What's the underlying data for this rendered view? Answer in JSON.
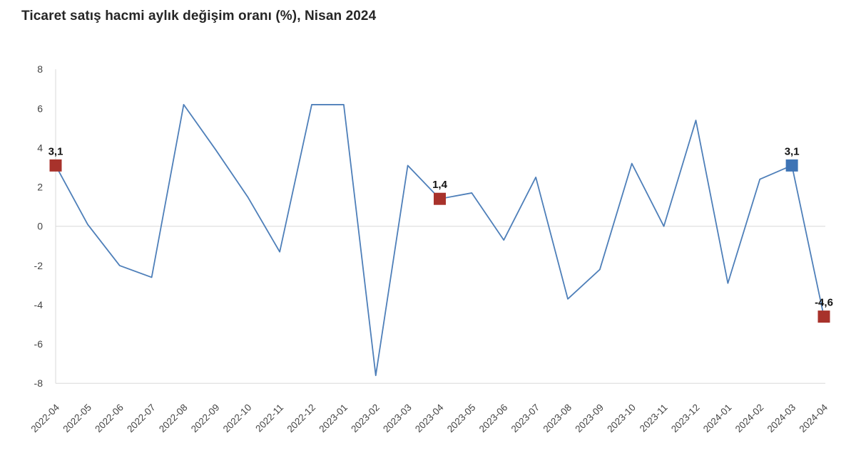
{
  "chart_data": {
    "type": "line",
    "title": "Ticaret satış hacmi aylık değişim oranı (%), Nisan 2024",
    "x": [
      "2022-04",
      "2022-05",
      "2022-06",
      "2022-07",
      "2022-08",
      "2022-09",
      "2022-10",
      "2022-11",
      "2022-12",
      "2023-01",
      "2023-02",
      "2023-03",
      "2023-04",
      "2023-05",
      "2023-06",
      "2023-07",
      "2023-08",
      "2023-09",
      "2023-10",
      "2023-11",
      "2023-12",
      "2024-01",
      "2024-02",
      "2024-03",
      "2024-04"
    ],
    "values": [
      3.1,
      0.1,
      -2.0,
      -2.6,
      6.2,
      3.9,
      1.5,
      -1.3,
      6.2,
      6.2,
      -7.6,
      3.1,
      1.4,
      1.7,
      -0.7,
      2.5,
      -3.7,
      -2.2,
      3.2,
      0.0,
      5.4,
      -2.9,
      2.4,
      3.1,
      -4.6
    ],
    "ylim": [
      -8,
      8
    ],
    "y_ticks": [
      8,
      6,
      4,
      2,
      0,
      -2,
      -4,
      -6,
      -8
    ],
    "xlabel": "",
    "ylabel": "",
    "legend": "none",
    "grid": "zero-line-and-frame-only",
    "line_color": "#4e7fb9",
    "gridline_color": "#d9d9d9",
    "labeled_points": [
      {
        "x": "2022-04",
        "index": 0,
        "label": "3,1",
        "marker_color": "#a8322b"
      },
      {
        "x": "2023-04",
        "index": 12,
        "label": "1,4",
        "marker_color": "#a8322b"
      },
      {
        "x": "2024-03",
        "index": 23,
        "label": "3,1",
        "marker_color": "#3e74b5"
      },
      {
        "x": "2024-04",
        "index": 24,
        "label": "-4,6",
        "marker_color": "#a8322b"
      }
    ]
  }
}
